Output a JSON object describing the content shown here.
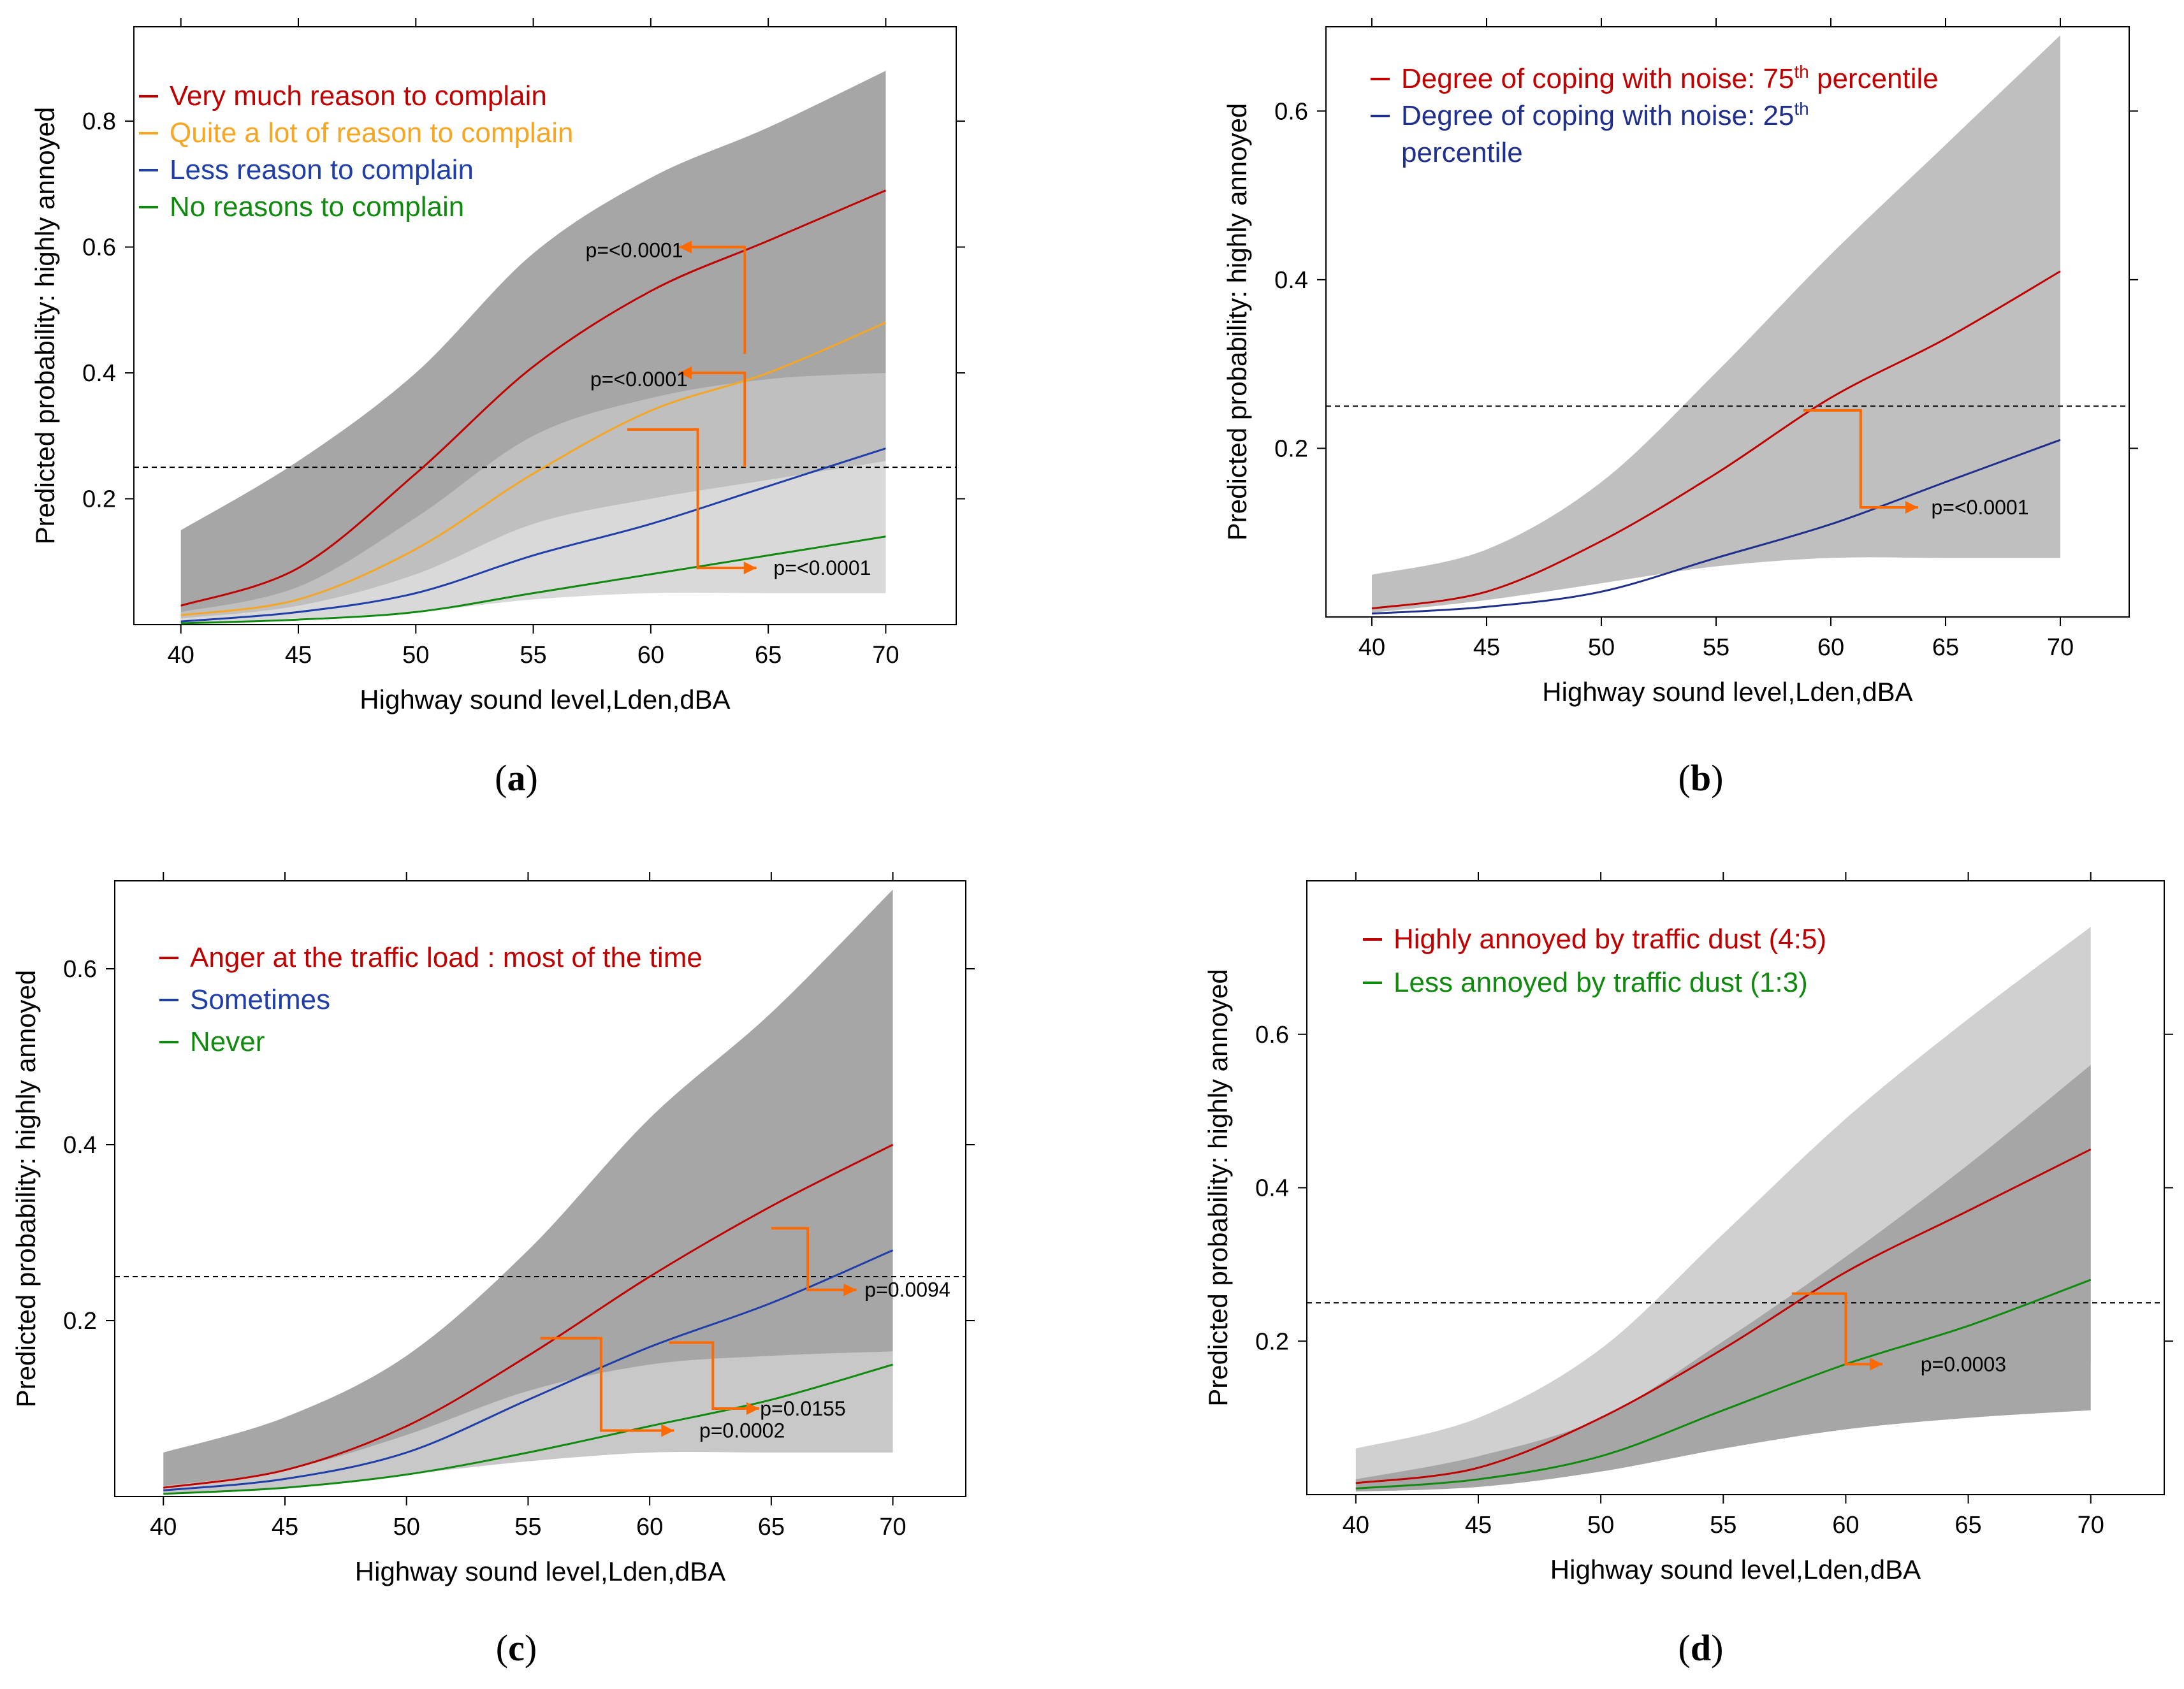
{
  "chart_data": [
    {
      "panel": "a",
      "type": "line",
      "xlabel": "Highway sound level,Lden,dBA",
      "ylabel": "Predicted probability: highly annoyed",
      "xlim": [
        38,
        73
      ],
      "ylim": [
        0,
        0.95
      ],
      "xticks": [
        40,
        45,
        50,
        55,
        60,
        65,
        70
      ],
      "yticks": [
        0.2,
        0.4,
        0.6,
        0.8
      ],
      "yticklabels": [
        "0.2",
        "0.4",
        "0.6",
        "0.8"
      ],
      "reference_y": 0.25,
      "x": [
        40,
        45,
        50,
        55,
        60,
        65,
        70
      ],
      "series": [
        {
          "name": "Very much reason to complain",
          "color": "#c00000",
          "values": [
            0.03,
            0.09,
            0.24,
            0.41,
            0.53,
            0.61,
            0.69
          ],
          "band_lower": [
            0.01,
            0.03,
            0.09,
            0.17,
            0.23,
            0.26,
            0.28
          ],
          "band_upper": [
            0.15,
            0.26,
            0.4,
            0.59,
            0.71,
            0.79,
            0.88
          ],
          "band_color": "#a6a6a6"
        },
        {
          "name": "Quite a lot of reason to complain",
          "color": "#f5a623",
          "values": [
            0.015,
            0.04,
            0.12,
            0.24,
            0.34,
            0.4,
            0.48
          ],
          "band_lower": [
            0.005,
            0.02,
            0.06,
            0.12,
            0.17,
            0.2,
            0.23
          ],
          "band_upper": [
            0.02,
            0.06,
            0.17,
            0.3,
            0.36,
            0.39,
            0.4
          ],
          "band_color": "#bfbfbf"
        },
        {
          "name": "Less reason to complain",
          "color": "#1f3ea8",
          "values": [
            0.005,
            0.02,
            0.05,
            0.11,
            0.16,
            0.22,
            0.28
          ],
          "band_lower": [
            0.002,
            0.01,
            0.02,
            0.04,
            0.05,
            0.05,
            0.05
          ],
          "band_upper": [
            0.01,
            0.03,
            0.08,
            0.16,
            0.2,
            0.23,
            0.26
          ],
          "band_color": "#d9d9d9"
        },
        {
          "name": "No reasons to complain",
          "color": "#0f8a0f",
          "values": [
            0.002,
            0.008,
            0.02,
            0.05,
            0.08,
            0.11,
            0.14
          ],
          "band_lower": [],
          "band_upper": [],
          "band_color": ""
        }
      ],
      "annotations": [
        "p=<0.0001",
        "p=<0.0001",
        "p=<0.0001"
      ],
      "caption": "a"
    },
    {
      "panel": "b",
      "type": "line",
      "xlabel": "Highway sound level,Lden,dBA",
      "ylabel": "Predicted probability: highly annoyed",
      "xlim": [
        38,
        73
      ],
      "ylim": [
        0,
        0.7
      ],
      "xticks": [
        40,
        45,
        50,
        55,
        60,
        65,
        70
      ],
      "yticks": [
        0.2,
        0.4,
        0.6
      ],
      "yticklabels": [
        "0.2",
        "0.4",
        "0.6"
      ],
      "reference_y": 0.25,
      "x": [
        40,
        45,
        50,
        55,
        60,
        65,
        70
      ],
      "series": [
        {
          "name": "Degree of coping with noise: 75th percentile",
          "color": "#c00000",
          "values": [
            0.01,
            0.03,
            0.09,
            0.17,
            0.26,
            0.33,
            0.41
          ],
          "band_lower": [
            0.005,
            0.02,
            0.04,
            0.06,
            0.07,
            0.07,
            0.07
          ],
          "band_upper": [
            0.05,
            0.08,
            0.16,
            0.29,
            0.43,
            0.56,
            0.69
          ],
          "band_color": "#bfbfbf"
        },
        {
          "name": "Degree of coping with noise: 25th percentile",
          "color": "#1f2f8c",
          "values": [
            0.004,
            0.012,
            0.03,
            0.07,
            0.11,
            0.16,
            0.21
          ],
          "band_lower": [],
          "band_upper": [],
          "band_color": ""
        }
      ],
      "annotations": [
        "p=<0.0001"
      ],
      "legend_lines": [
        "Degree of coping with noise: 75",
        "th",
        " percentile",
        "Degree of coping with noise: 25",
        "th",
        "percentile"
      ],
      "caption": "b"
    },
    {
      "panel": "c",
      "type": "line",
      "xlabel": "Highway sound level,Lden,dBA",
      "ylabel": "Predicted probability: highly annoyed",
      "xlim": [
        38,
        73
      ],
      "ylim": [
        0,
        0.7
      ],
      "xticks": [
        40,
        45,
        50,
        55,
        60,
        65,
        70
      ],
      "yticks": [
        0.2,
        0.4,
        0.6
      ],
      "yticklabels": [
        "0.2",
        "0.4",
        "0.6"
      ],
      "reference_y": 0.25,
      "x": [
        40,
        45,
        50,
        55,
        60,
        65,
        70
      ],
      "series": [
        {
          "name": "Anger at the traffic load : most of the time",
          "color": "#c00000",
          "values": [
            0.01,
            0.03,
            0.08,
            0.16,
            0.25,
            0.33,
            0.4
          ],
          "band_lower": [
            0.005,
            0.015,
            0.04,
            0.07,
            0.09,
            0.1,
            0.11
          ],
          "band_upper": [
            0.05,
            0.09,
            0.16,
            0.28,
            0.43,
            0.55,
            0.69
          ],
          "band_color": "#a6a6a6"
        },
        {
          "name": "Sometimes",
          "color": "#1f3ea8",
          "values": [
            0.007,
            0.02,
            0.05,
            0.11,
            0.17,
            0.22,
            0.28
          ],
          "band_lower": [
            0.003,
            0.01,
            0.025,
            0.04,
            0.05,
            0.05,
            0.05
          ],
          "band_upper": [
            0.012,
            0.03,
            0.07,
            0.12,
            0.15,
            0.16,
            0.165
          ],
          "band_color": "#c8c8c8"
        },
        {
          "name": "Never",
          "color": "#0f8a0f",
          "values": [
            0.003,
            0.01,
            0.025,
            0.05,
            0.08,
            0.11,
            0.15
          ],
          "band_lower": [],
          "band_upper": [],
          "band_color": ""
        }
      ],
      "annotations": [
        "p=0.0094",
        "p=0.0155",
        "p=0.0002"
      ],
      "caption": "c"
    },
    {
      "panel": "d",
      "type": "line",
      "xlabel": "Highway sound level,Lden,dBA",
      "ylabel": "Predicted probability: highly annoyed",
      "xlim": [
        38,
        73
      ],
      "ylim": [
        0,
        0.8
      ],
      "xticks": [
        40,
        45,
        50,
        55,
        60,
        65,
        70
      ],
      "yticks": [
        0.2,
        0.4,
        0.6
      ],
      "yticklabels": [
        "0.2",
        "0.4",
        "0.6"
      ],
      "reference_y": 0.25,
      "x": [
        40,
        45,
        50,
        55,
        60,
        65,
        70
      ],
      "series": [
        {
          "name": "Highly annoyed by traffic dust (4:5)",
          "color": "#c00000",
          "values": [
            0.015,
            0.035,
            0.1,
            0.19,
            0.29,
            0.37,
            0.45
          ],
          "band_lower": [
            0.008,
            0.02,
            0.05,
            0.1,
            0.14,
            0.16,
            0.17
          ],
          "band_upper": [
            0.06,
            0.1,
            0.19,
            0.34,
            0.49,
            0.62,
            0.74
          ],
          "band_color": "#d0d0d0"
        },
        {
          "name": "Less annoyed by traffic dust (1:3)",
          "color": "#0f8a0f",
          "values": [
            0.008,
            0.02,
            0.05,
            0.11,
            0.17,
            0.22,
            0.28
          ],
          "band_lower": [
            0.004,
            0.01,
            0.03,
            0.06,
            0.085,
            0.1,
            0.11
          ],
          "band_upper": [
            0.02,
            0.05,
            0.1,
            0.2,
            0.31,
            0.43,
            0.56
          ],
          "band_color": "#a6a6a6"
        }
      ],
      "annotations": [
        "p=0.0003"
      ],
      "caption": "d"
    }
  ],
  "arrow_color": "#ff6a00"
}
